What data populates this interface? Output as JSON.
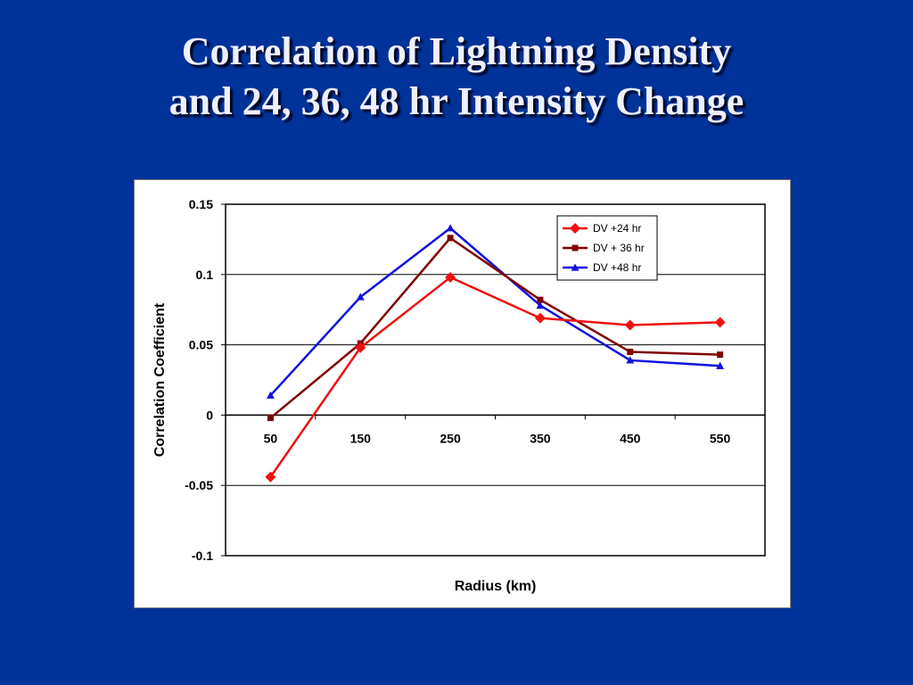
{
  "slide": {
    "title_line1": "Correlation of  Lightning Density",
    "title_line2": "and 24, 36, 48 hr Intensity Change"
  },
  "colors": {
    "background": "#003399",
    "DV +24 hr": "#ee1111",
    "DV + 36 hr": "#800000",
    "DV +48 hr": "#1111dd"
  },
  "chart_data": {
    "type": "line",
    "title": "",
    "xlabel": "Radius (km)",
    "ylabel": "Correlation Coefficient",
    "categories": [
      "50",
      "150",
      "250",
      "350",
      "450",
      "550"
    ],
    "ylim": [
      -0.1,
      0.15
    ],
    "yticks": [
      0.15,
      0.1,
      0.05,
      0,
      -0.05,
      -0.1
    ],
    "ytick_labels": [
      "0.15",
      "0.1",
      "0.05",
      "0",
      "-0.05",
      "-0.1"
    ],
    "grid": true,
    "legend_position": "top-right",
    "series": [
      {
        "name": "DV +24 hr",
        "marker": "diamond",
        "values": [
          -0.044,
          0.048,
          0.098,
          0.069,
          0.064,
          0.066
        ]
      },
      {
        "name": "DV + 36 hr",
        "marker": "square",
        "values": [
          -0.002,
          0.051,
          0.126,
          0.082,
          0.045,
          0.043
        ]
      },
      {
        "name": "DV +48 hr",
        "marker": "triangle",
        "values": [
          0.014,
          0.084,
          0.133,
          0.078,
          0.039,
          0.035
        ]
      }
    ]
  }
}
